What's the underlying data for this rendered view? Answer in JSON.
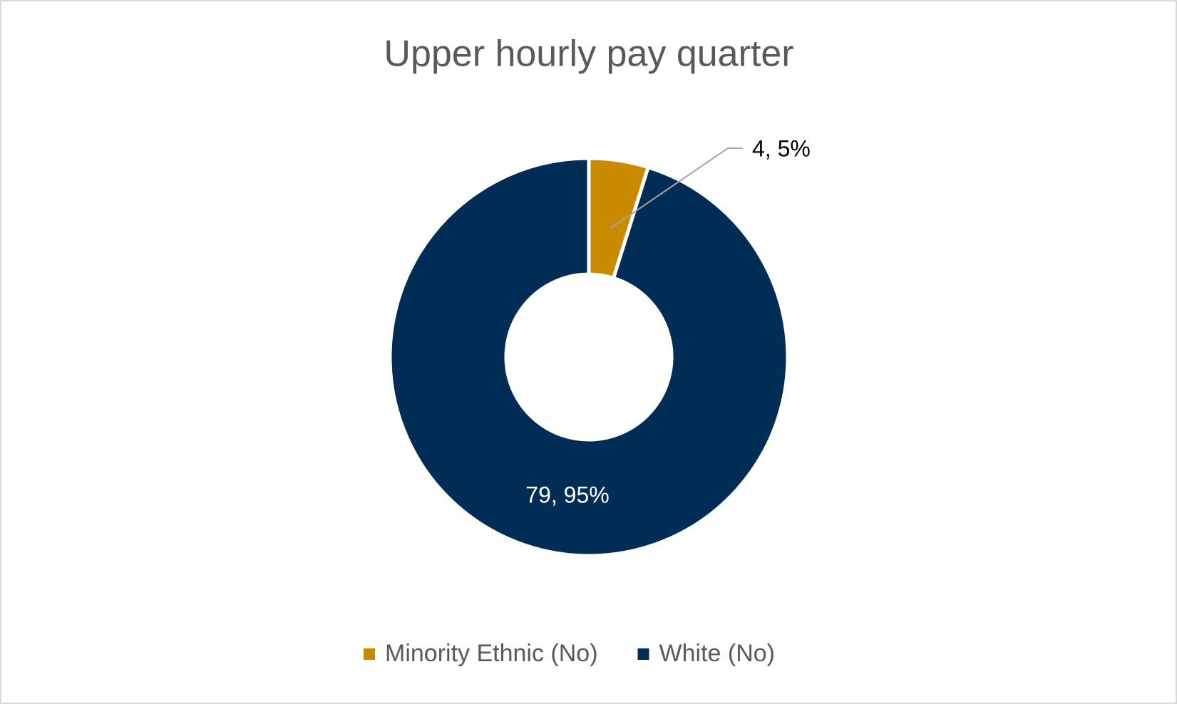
{
  "chart_data": {
    "type": "donut",
    "title": "Upper hourly pay quarter",
    "categories": [
      "Minority Ethnic (No)",
      "White (No)"
    ],
    "values": [
      4,
      79
    ],
    "value_labels": [
      "4, 5%",
      "79, 95%"
    ],
    "colors": [
      "#c98a00",
      "#002d56"
    ],
    "legend": "bottom"
  }
}
